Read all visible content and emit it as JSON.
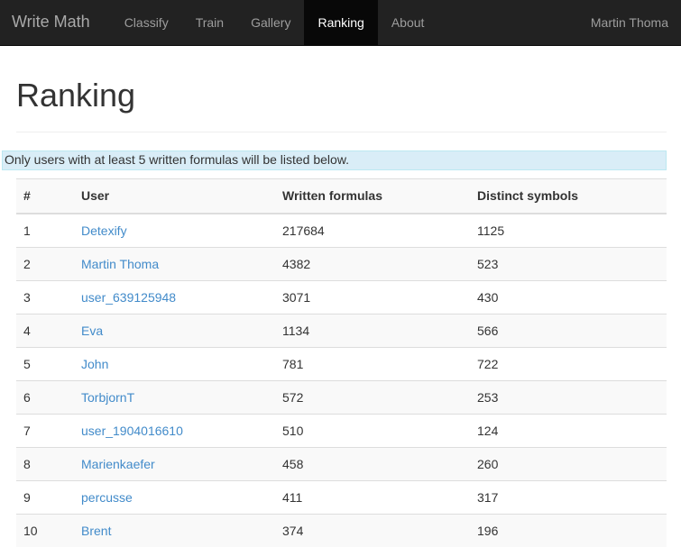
{
  "navbar": {
    "brand": "Write Math",
    "items": [
      {
        "label": "Classify",
        "active": false
      },
      {
        "label": "Train",
        "active": false
      },
      {
        "label": "Gallery",
        "active": false
      },
      {
        "label": "Ranking",
        "active": true
      },
      {
        "label": "About",
        "active": false
      }
    ],
    "user": "Martin Thoma"
  },
  "page": {
    "title": "Ranking",
    "alert_text": "Only users with at least 5 written formulas will be listed below."
  },
  "table": {
    "headers": {
      "rank": "#",
      "user": "User",
      "written": "Written formulas",
      "distinct": "Distinct symbols"
    },
    "rows": [
      {
        "rank": "1",
        "user": "Detexify",
        "written": "217684",
        "distinct": "1125"
      },
      {
        "rank": "2",
        "user": "Martin Thoma",
        "written": "4382",
        "distinct": "523"
      },
      {
        "rank": "3",
        "user": "user_639125948",
        "written": "3071",
        "distinct": "430"
      },
      {
        "rank": "4",
        "user": "Eva",
        "written": "1134",
        "distinct": "566"
      },
      {
        "rank": "5",
        "user": "John",
        "written": "781",
        "distinct": "722"
      },
      {
        "rank": "6",
        "user": "TorbjornT",
        "written": "572",
        "distinct": "253"
      },
      {
        "rank": "7",
        "user": "user_1904016610",
        "written": "510",
        "distinct": "124"
      },
      {
        "rank": "8",
        "user": "Marienkaefer",
        "written": "458",
        "distinct": "260"
      },
      {
        "rank": "9",
        "user": "percusse",
        "written": "411",
        "distinct": "317"
      },
      {
        "rank": "10",
        "user": "Brent",
        "written": "374",
        "distinct": "196"
      }
    ]
  },
  "colors": {
    "navbar_bg": "#222222",
    "navbar_active_bg": "#080808",
    "navbar_link": "#9d9d9d",
    "navbar_active_text": "#ffffff",
    "link": "#428bca",
    "alert_bg": "#d9edf7",
    "alert_border": "#bce8f1",
    "stripe": "#f9f9f9",
    "table_border": "#dddddd",
    "text": "#333333"
  }
}
